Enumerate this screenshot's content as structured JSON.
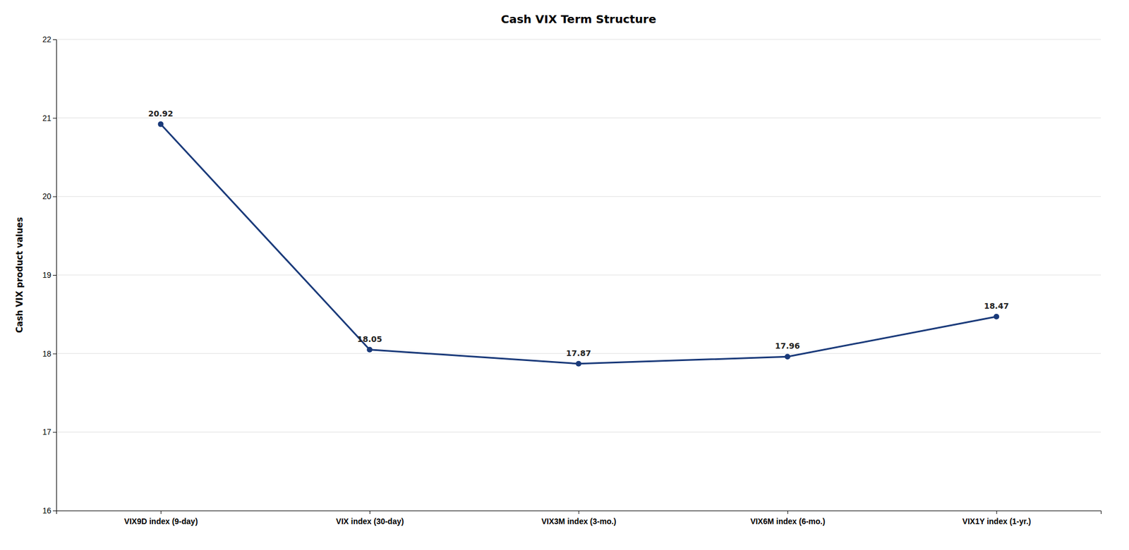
{
  "chart_data": {
    "type": "line",
    "title": "Cash VIX Term Structure",
    "ylabel": "Cash VIX product values",
    "categories": [
      "VIX9D index  (9-day)",
      "VIX index  (30-day)",
      "VIX3M index  (3-mo.)",
      "VIX6M index  (6-mo.)",
      "VIX1Y index  (1-yr.)"
    ],
    "values": [
      20.92,
      18.05,
      17.87,
      17.96,
      18.47
    ],
    "color": "#1A3A7A",
    "marker": "circle",
    "ylim": [
      16,
      22
    ],
    "yticks": [
      16,
      17,
      18,
      19,
      20,
      21,
      22
    ],
    "grid": true,
    "data_labels": true
  }
}
